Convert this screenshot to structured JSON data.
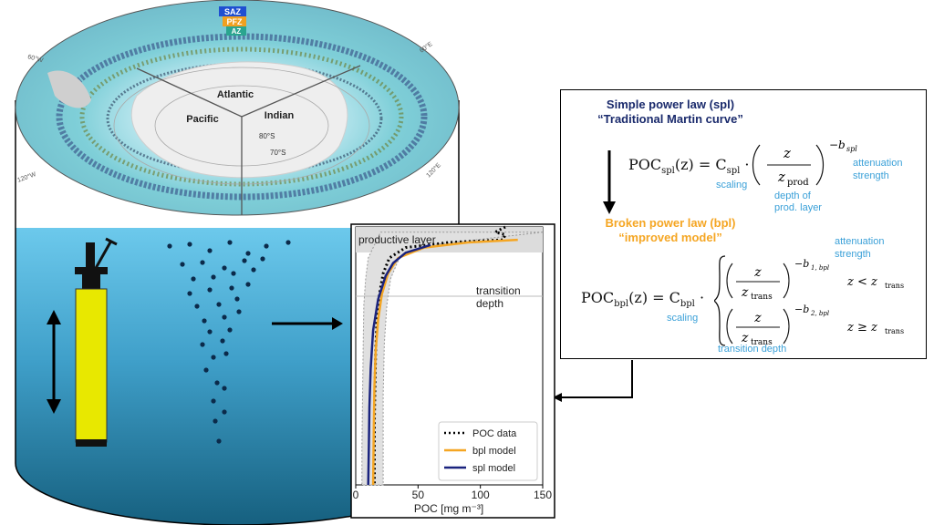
{
  "map": {
    "zones": [
      {
        "label": "SAZ",
        "color": "#1f4fd1"
      },
      {
        "label": "PFZ",
        "color": "#f0a020"
      },
      {
        "label": "AZ",
        "color": "#2aa58f"
      }
    ],
    "oceans": [
      "Atlantic",
      "Pacific",
      "Indian"
    ],
    "latitudes": [
      "80°S",
      "70°S"
    ],
    "longitudes": [
      "60°W",
      "60°E",
      "120°W",
      "120°E"
    ]
  },
  "chart_data": {
    "type": "line",
    "xlabel": "POC [mg m⁻³]",
    "xticks": [
      0,
      50,
      100,
      150
    ],
    "xlim": [
      0,
      150
    ],
    "annotations": [
      "productive layer",
      "transition depth"
    ],
    "legend_position": "bottom-right",
    "series": [
      {
        "name": "POC data",
        "style": "dotted",
        "color": "#000000",
        "points": [
          [
            120,
            0.0
          ],
          [
            116,
            0.01
          ],
          [
            112,
            0.02
          ],
          [
            120,
            0.03
          ],
          [
            118,
            0.05
          ],
          [
            75,
            0.06
          ],
          [
            40,
            0.08
          ],
          [
            27,
            0.12
          ],
          [
            22,
            0.18
          ],
          [
            19,
            0.26
          ],
          [
            17,
            0.36
          ],
          [
            16,
            0.48
          ],
          [
            15.5,
            0.6
          ],
          [
            15,
            0.75
          ],
          [
            15,
            0.9
          ],
          [
            15,
            1.0
          ]
        ]
      },
      {
        "name": "bpl model",
        "style": "solid",
        "color": "#f5a623",
        "points": [
          [
            130,
            0.05
          ],
          [
            90,
            0.06
          ],
          [
            55,
            0.08
          ],
          [
            34,
            0.12
          ],
          [
            26,
            0.18
          ],
          [
            21,
            0.26
          ],
          [
            18,
            0.36
          ],
          [
            16,
            0.48
          ],
          [
            15,
            0.62
          ],
          [
            14.5,
            0.78
          ],
          [
            14,
            1.0
          ]
        ]
      },
      {
        "name": "spl model",
        "style": "solid",
        "color": "#1a237e",
        "points": [
          [
            60,
            0.07
          ],
          [
            40,
            0.1
          ],
          [
            30,
            0.14
          ],
          [
            24,
            0.19
          ],
          [
            18,
            0.28
          ],
          [
            14,
            0.4
          ],
          [
            12,
            0.55
          ],
          [
            11,
            0.7
          ],
          [
            10.5,
            0.85
          ],
          [
            10,
            1.0
          ]
        ]
      }
    ]
  },
  "equations": {
    "spl_title_1": "Simple power law (spl)",
    "spl_title_2": "“Traditional Martin curve”",
    "bpl_title_1": "Broken power law (bpl)",
    "bpl_title_2": "“improved model”",
    "spl_lhs": "POC",
    "spl_lhs_sub": "spl",
    "spl_eq": "(z) = C",
    "spl_c_sub": "spl",
    "spl_z": "z",
    "spl_zprod": "z",
    "spl_zprod_sub": "prod",
    "spl_exp": "−b",
    "spl_exp_sub": "spl",
    "bpl_lhs": "POC",
    "bpl_lhs_sub": "bpl",
    "bpl_eq": "(z) = C",
    "bpl_c_sub": "bpl",
    "bpl_z": "z",
    "bpl_ztrans": "z",
    "bpl_ztrans_sub": "trans",
    "bpl_exp1": "−b",
    "bpl_exp1_sub": "1, bpl",
    "bpl_exp2": "−b",
    "bpl_exp2_sub": "2, bpl",
    "bpl_cond1": "z < z",
    "bpl_cond2": "z ≥ z",
    "cond_sub": "trans",
    "notes": {
      "scaling": "scaling",
      "depth_prod_1": "depth of",
      "depth_prod_2": "prod. layer",
      "atten_1": "attenuation",
      "atten_2": "strength",
      "transition_depth": "transition depth"
    }
  },
  "colors": {
    "ocean_top": "#5fc3e8",
    "ocean_bottom": "#1a6a8f",
    "float_body": "#e8e800",
    "spl": "#1a237e",
    "bpl": "#f5a623",
    "note": "#3aa0d8"
  }
}
